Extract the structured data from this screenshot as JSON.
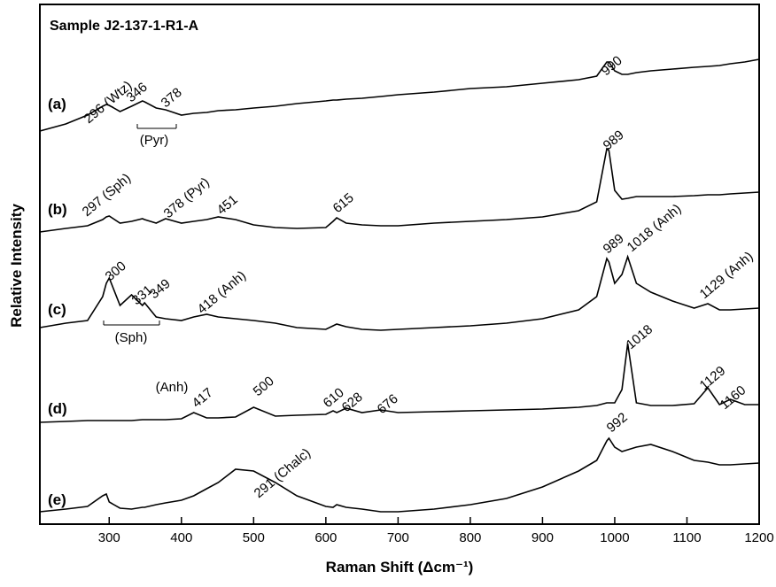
{
  "chart_data": {
    "type": "line",
    "title": "Sample J2-137-1-R1-A",
    "x_label": "Raman Shift (Δcm⁻¹)",
    "y_label": "Relative Intensity",
    "xlim": [
      204,
      1200
    ],
    "ylim": [
      0,
      587
    ],
    "xticks": [
      300,
      400,
      500,
      600,
      700,
      800,
      900,
      1000,
      1100,
      1200
    ],
    "x": [
      204,
      240,
      270,
      291,
      296,
      300,
      315,
      331,
      346,
      349,
      365,
      378,
      400,
      417,
      435,
      451,
      475,
      500,
      530,
      560,
      600,
      610,
      615,
      628,
      650,
      676,
      700,
      750,
      800,
      850,
      900,
      950,
      975,
      989,
      992,
      1000,
      1010,
      1018,
      1030,
      1050,
      1080,
      1110,
      1129,
      1145,
      1160,
      1180,
      1200
    ],
    "series": [
      {
        "name": "(a)",
        "color": "#000000",
        "values": [
          444,
          452,
          462,
          472,
          474,
          473,
          466,
          472,
          478,
          477,
          470,
          468,
          462,
          464,
          465,
          467,
          468,
          470,
          472,
          475,
          478,
          479,
          479,
          480,
          481,
          483,
          485,
          488,
          492,
          494,
          498,
          502,
          506,
          522,
          522,
          512,
          508,
          508,
          510,
          512,
          514,
          516,
          517,
          518,
          520,
          522,
          525
        ]
      },
      {
        "name": "(b)",
        "color": "#000000",
        "values": [
          330,
          334,
          337,
          344,
          347,
          348,
          340,
          342,
          345,
          344,
          340,
          345,
          340,
          342,
          344,
          347,
          344,
          338,
          335,
          334,
          335,
          342,
          346,
          340,
          338,
          337,
          337,
          340,
          342,
          344,
          347,
          354,
          364,
          424,
          422,
          377,
          367,
          368,
          370,
          370,
          370,
          371,
          372,
          372,
          373,
          374,
          375
        ]
      },
      {
        "name": "(c)",
        "color": "#000000",
        "values": [
          222,
          227,
          230,
          257,
          272,
          278,
          247,
          259,
          247,
          250,
          234,
          232,
          230,
          234,
          237,
          234,
          232,
          230,
          227,
          222,
          220,
          224,
          226,
          223,
          220,
          219,
          220,
          222,
          224,
          227,
          232,
          242,
          257,
          300,
          296,
          272,
          282,
          302,
          272,
          262,
          252,
          244,
          249,
          242,
          242,
          243,
          244
        ]
      },
      {
        "name": "(d)",
        "color": "#000000",
        "values": [
          115,
          116,
          117,
          117,
          117,
          117,
          117,
          117,
          118,
          118,
          118,
          118,
          119,
          126,
          120,
          120,
          121,
          132,
          122,
          123,
          124,
          128,
          126,
          131,
          126,
          129,
          126,
          127,
          128,
          129,
          130,
          132,
          134,
          137,
          137,
          137,
          152,
          204,
          137,
          134,
          134,
          136,
          154,
          135,
          141,
          135,
          135
        ]
      },
      {
        "name": "(e)",
        "color": "#000000",
        "values": [
          14,
          17,
          20,
          32,
          34,
          25,
          18,
          17,
          19,
          19,
          22,
          24,
          27,
          32,
          40,
          47,
          62,
          60,
          47,
          32,
          20,
          19,
          22,
          19,
          17,
          14,
          14,
          17,
          22,
          29,
          42,
          60,
          72,
          94,
          97,
          87,
          82,
          84,
          87,
          90,
          82,
          72,
          70,
          67,
          67,
          68,
          69
        ]
      }
    ],
    "annotations": [
      "296 (Wtz)",
      "346",
      "378",
      "990",
      "(Pyr)",
      "297 (Sph)",
      "378 (Pyr)",
      "451",
      "615",
      "989",
      "300",
      "331",
      "349",
      "418 (Anh)",
      "989",
      "1018 (Anh)",
      "1129 (Anh)",
      "(Sph)",
      "(Anh)",
      "417",
      "500",
      "610",
      "628",
      "676",
      "1018",
      "1129",
      "1160",
      "291 (Chalc)",
      "992"
    ]
  }
}
